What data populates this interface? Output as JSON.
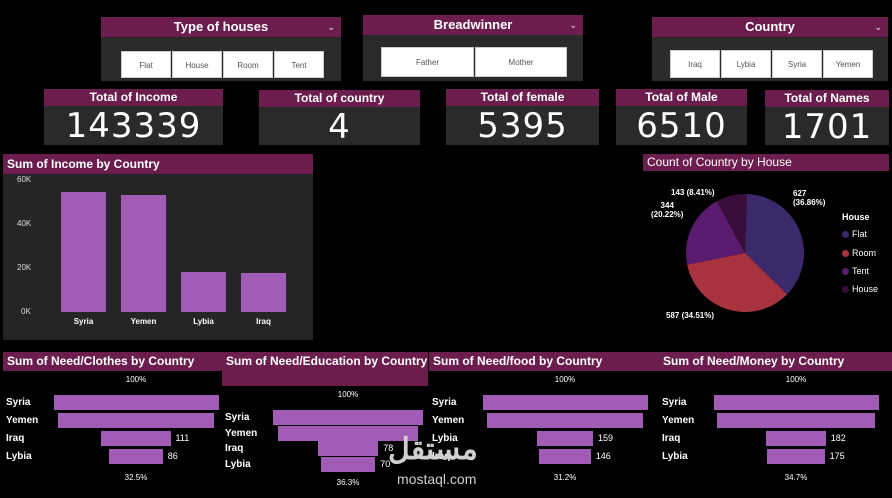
{
  "slicers": {
    "type_of_houses": {
      "title": "Type of houses",
      "options": [
        "Flat",
        "House",
        "Room",
        "Tent"
      ]
    },
    "breadwinner": {
      "title": "Breadwinner",
      "options": [
        "Father",
        "Mother"
      ]
    },
    "country": {
      "title": "Country",
      "options": [
        "Iraq",
        "Lybia",
        "Syria",
        "Yemen"
      ]
    }
  },
  "cards": [
    {
      "label": "Total of Income",
      "value": "143339"
    },
    {
      "label": "Total of country",
      "value": "4"
    },
    {
      "label": "Total of female",
      "value": "5395"
    },
    {
      "label": "Total of Male",
      "value": "6510"
    },
    {
      "label": "Total of Names",
      "value": "1701"
    }
  ],
  "income_chart": {
    "title": "Sum of Income by Country",
    "y_ticks": [
      "60K",
      "40K",
      "20K",
      "0K"
    ],
    "chart_data": {
      "type": "bar",
      "categories": [
        "Syria",
        "Yemen",
        "Lybia",
        "Iraq"
      ],
      "values": [
        54500,
        53000,
        18200,
        17800
      ],
      "ylim": [
        0,
        60000
      ],
      "color": "#a15cb5"
    }
  },
  "pie_chart": {
    "title": "Count of Country by House",
    "legend_title": "House",
    "chart_data": {
      "type": "pie",
      "slices": [
        {
          "label": "Flat",
          "value": 627,
          "text": "627\n(36.86%)",
          "color": "#3b2a6b"
        },
        {
          "label": "Room",
          "value": 587,
          "text": "587 (34.51%)",
          "color": "#a8323e"
        },
        {
          "label": "Tent",
          "value": 344,
          "text": "344\n(20.22%)",
          "color": "#5a1a6e"
        },
        {
          "label": "House",
          "value": 143,
          "text": "143 (8.41%)",
          "color": "#3a0d3a"
        }
      ],
      "legend_text": [
        "Flat",
        "Room",
        "Tent",
        "House"
      ]
    }
  },
  "funnels": [
    {
      "title": "Sum of Need/Clothes by Country",
      "top_pct": "100%",
      "bottom_pct": "32.5%",
      "chart_data": {
        "type": "bar",
        "categories": [
          "Syria",
          "Yemen",
          "Iraq",
          "Lybia"
        ],
        "values": [
          265,
          250,
          111,
          86
        ],
        "labels": [
          "",
          "",
          "111",
          "86"
        ]
      }
    },
    {
      "title": "Sum of Need/Education by Country",
      "top_pct": "100%",
      "bottom_pct": "36.3%",
      "chart_data": {
        "type": "bar",
        "categories": [
          "Syria",
          "Yemen",
          "Iraq",
          "Lybia"
        ],
        "values": [
          193,
          180,
          78,
          70
        ],
        "labels": [
          "",
          "",
          "78",
          "70"
        ]
      }
    },
    {
      "title": "Sum of Need/food by Country",
      "top_pct": "100%",
      "bottom_pct": "31.2%",
      "chart_data": {
        "type": "bar",
        "categories": [
          "Syria",
          "Yemen",
          "Lybia",
          "Iraq"
        ],
        "values": [
          468,
          440,
          159,
          146
        ],
        "labels": [
          "",
          "",
          "159",
          "146"
        ]
      }
    },
    {
      "title": "Sum of Need/Money by Country",
      "top_pct": "100%",
      "bottom_pct": "34.7%",
      "chart_data": {
        "type": "bar",
        "categories": [
          "Syria",
          "Yemen",
          "Iraq",
          "Lybia"
        ],
        "values": [
          504,
          480,
          182,
          175
        ],
        "labels": [
          "",
          "",
          "182",
          "175"
        ]
      }
    }
  ],
  "watermark": {
    "arabic": "مستقل",
    "latin": "mostaql.com"
  }
}
